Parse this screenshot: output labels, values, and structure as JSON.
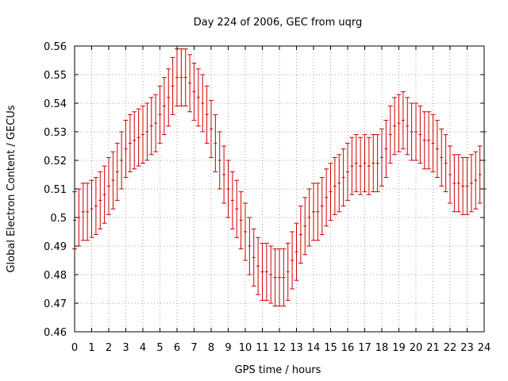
{
  "chart_data": {
    "type": "scatter",
    "title": "Day 224 of 2006, GEC from uqrg",
    "xlabel": "GPS time / hours",
    "ylabel": "Global Electron Content / GECUs",
    "xlim": [
      0,
      24
    ],
    "ylim": [
      0.46,
      0.56
    ],
    "grid": true,
    "x_ticks": [
      0,
      1,
      2,
      3,
      4,
      5,
      6,
      7,
      8,
      9,
      10,
      11,
      12,
      13,
      14,
      15,
      16,
      17,
      18,
      19,
      20,
      21,
      22,
      23,
      24
    ],
    "y_ticks": [
      0.46,
      0.47,
      0.48,
      0.49,
      0.5,
      0.51,
      0.52,
      0.53,
      0.54,
      0.55,
      0.56
    ],
    "y_tick_labels": [
      "0.46",
      "0.47",
      "0.48",
      "0.49",
      "0.5",
      "0.51",
      "0.52",
      "0.53",
      "0.54",
      "0.55",
      "0.56"
    ],
    "series": [
      {
        "color": "#cc0000",
        "error": 0.01,
        "x": [
          0,
          0.25,
          0.5,
          0.75,
          1,
          1.25,
          1.5,
          1.75,
          2,
          2.25,
          2.5,
          2.75,
          3,
          3.25,
          3.5,
          3.75,
          4,
          4.25,
          4.5,
          4.75,
          5,
          5.25,
          5.5,
          5.75,
          6,
          6.25,
          6.5,
          6.75,
          7,
          7.25,
          7.5,
          7.75,
          8,
          8.25,
          8.5,
          8.75,
          9,
          9.25,
          9.5,
          9.75,
          10,
          10.25,
          10.5,
          10.75,
          11,
          11.25,
          11.5,
          11.75,
          12,
          12.25,
          12.5,
          12.75,
          13,
          13.25,
          13.5,
          13.75,
          14,
          14.25,
          14.5,
          14.75,
          15,
          15.25,
          15.5,
          15.75,
          16,
          16.25,
          16.5,
          16.75,
          17,
          17.25,
          17.5,
          17.75,
          18,
          18.25,
          18.5,
          18.75,
          19,
          19.25,
          19.5,
          19.75,
          20,
          20.25,
          20.5,
          20.75,
          21,
          21.25,
          21.5,
          21.75,
          22,
          22.25,
          22.5,
          22.75,
          23,
          23.25,
          23.5,
          23.75,
          24
        ],
        "y": [
          0.499,
          0.5,
          0.502,
          0.502,
          0.503,
          0.504,
          0.506,
          0.508,
          0.511,
          0.513,
          0.516,
          0.52,
          0.524,
          0.526,
          0.527,
          0.528,
          0.529,
          0.53,
          0.532,
          0.533,
          0.536,
          0.539,
          0.542,
          0.546,
          0.549,
          0.549,
          0.549,
          0.547,
          0.544,
          0.542,
          0.54,
          0.536,
          0.531,
          0.526,
          0.52,
          0.515,
          0.51,
          0.506,
          0.503,
          0.499,
          0.495,
          0.49,
          0.486,
          0.483,
          0.481,
          0.481,
          0.48,
          0.479,
          0.479,
          0.479,
          0.481,
          0.485,
          0.488,
          0.494,
          0.497,
          0.5,
          0.502,
          0.502,
          0.504,
          0.507,
          0.509,
          0.511,
          0.512,
          0.514,
          0.516,
          0.518,
          0.519,
          0.518,
          0.519,
          0.518,
          0.519,
          0.519,
          0.521,
          0.524,
          0.529,
          0.532,
          0.533,
          0.534,
          0.532,
          0.53,
          0.53,
          0.529,
          0.527,
          0.527,
          0.526,
          0.524,
          0.521,
          0.519,
          0.515,
          0.512,
          0.512,
          0.511,
          0.511,
          0.512,
          0.513,
          0.515,
          0.52
        ]
      }
    ]
  }
}
